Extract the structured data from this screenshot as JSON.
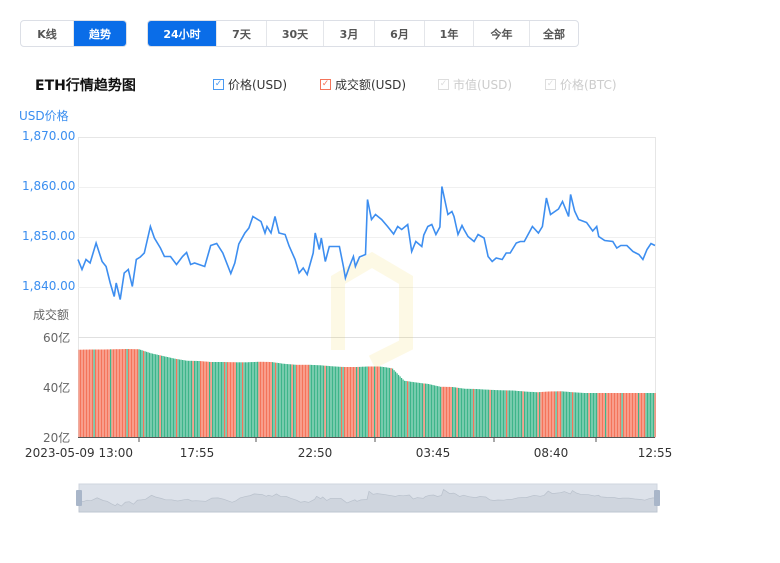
{
  "view_tabs": [
    {
      "label": "K线",
      "active": false
    },
    {
      "label": "趋势",
      "active": true
    }
  ],
  "range_tabs": [
    {
      "label": "24小时",
      "active": true
    },
    {
      "label": "7天"
    },
    {
      "label": "30天"
    },
    {
      "label": "3月"
    },
    {
      "label": "6月"
    },
    {
      "label": "1年"
    },
    {
      "label": "今年"
    },
    {
      "label": "全部"
    }
  ],
  "title": "ETH行情趋势图",
  "legend": [
    {
      "label": "价格(USD)",
      "checked": true,
      "color": "#4a9af2"
    },
    {
      "label": "成交额(USD)",
      "checked": true,
      "color": "#f4745a"
    },
    {
      "label": "市值(USD)",
      "checked": false,
      "color": "#cccccc"
    },
    {
      "label": "价格(BTC)",
      "checked": false,
      "color": "#cccccc"
    }
  ],
  "chart_data": [
    {
      "type": "line",
      "ylabel": "USD价格",
      "ylim": [
        1835,
        1870
      ],
      "yticks": [
        "1,870.00",
        "1,860.00",
        "1,850.00",
        "1,840.00"
      ],
      "color": "#3d8ef0",
      "x_range": [
        "2023-05-09 13:00",
        "2023-05-10 12:55"
      ],
      "points": [
        [
          "13:00",
          1845.5
        ],
        [
          "13:10",
          1843.5
        ],
        [
          "13:20",
          1845.5
        ],
        [
          "13:30",
          1844.8
        ],
        [
          "13:45",
          1848.8
        ],
        [
          "14:00",
          1845.1
        ],
        [
          "14:10",
          1844.1
        ],
        [
          "14:20",
          1840.8
        ],
        [
          "14:30",
          1838.1
        ],
        [
          "14:35",
          1840.8
        ],
        [
          "14:45",
          1837.5
        ],
        [
          "14:55",
          1842.8
        ],
        [
          "15:05",
          1843.5
        ],
        [
          "15:15",
          1840.1
        ],
        [
          "15:25",
          1845.5
        ],
        [
          "15:35",
          1846.0
        ],
        [
          "15:45",
          1846.8
        ],
        [
          "16:00",
          1852.1
        ],
        [
          "16:10",
          1849.8
        ],
        [
          "16:25",
          1847.8
        ],
        [
          "16:35",
          1846.1
        ],
        [
          "16:50",
          1846.1
        ],
        [
          "17:05",
          1844.5
        ],
        [
          "17:20",
          1846.1
        ],
        [
          "17:30",
          1846.9
        ],
        [
          "17:40",
          1844.5
        ],
        [
          "17:50",
          1844.8
        ],
        [
          "18:15",
          1844.1
        ],
        [
          "18:30",
          1848.3
        ],
        [
          "18:45",
          1848.7
        ],
        [
          "19:00",
          1846.8
        ],
        [
          "19:20",
          1842.7
        ],
        [
          "19:30",
          1844.8
        ],
        [
          "19:40",
          1848.6
        ],
        [
          "19:55",
          1850.8
        ],
        [
          "20:05",
          1851.8
        ],
        [
          "20:15",
          1854.1
        ],
        [
          "20:35",
          1853.1
        ],
        [
          "20:45",
          1850.8
        ],
        [
          "20:50",
          1852.1
        ],
        [
          "21:00",
          1850.8
        ],
        [
          "21:10",
          1854.1
        ],
        [
          "21:20",
          1850.8
        ],
        [
          "21:35",
          1850.5
        ],
        [
          "21:45",
          1848.2
        ],
        [
          "22:00",
          1845.5
        ],
        [
          "22:10",
          1842.8
        ],
        [
          "22:20",
          1843.8
        ],
        [
          "22:30",
          1842.5
        ],
        [
          "22:45",
          1846.8
        ],
        [
          "22:50",
          1850.8
        ],
        [
          "23:00",
          1847.5
        ],
        [
          "23:05",
          1849.8
        ],
        [
          "23:15",
          1845.1
        ],
        [
          "23:25",
          1848.1
        ],
        [
          "23:35",
          1848.1
        ],
        [
          "23:50",
          1848.1
        ],
        [
          "00:00",
          1844.1
        ],
        [
          "00:05",
          1841.8
        ],
        [
          "00:15",
          1844.1
        ],
        [
          "00:25",
          1846.1
        ],
        [
          "00:30",
          1844.1
        ],
        [
          "00:40",
          1846.0
        ],
        [
          "00:55",
          1846.5
        ],
        [
          "01:00",
          1857.5
        ],
        [
          "01:10",
          1853.5
        ],
        [
          "01:20",
          1854.5
        ],
        [
          "01:35",
          1853.5
        ],
        [
          "01:50",
          1852.1
        ],
        [
          "02:05",
          1850.6
        ],
        [
          "02:15",
          1852.1
        ],
        [
          "02:25",
          1851.5
        ],
        [
          "02:40",
          1852.5
        ],
        [
          "02:50",
          1847.1
        ],
        [
          "03:00",
          1849.1
        ],
        [
          "03:15",
          1848.1
        ],
        [
          "03:20",
          1850.4
        ],
        [
          "03:30",
          1852.1
        ],
        [
          "03:40",
          1852.5
        ],
        [
          "03:50",
          1850.5
        ],
        [
          "04:00",
          1852.0
        ],
        [
          "04:05",
          1860.1
        ],
        [
          "04:20",
          1854.5
        ],
        [
          "04:30",
          1855.1
        ],
        [
          "04:35",
          1854.1
        ],
        [
          "04:45",
          1850.5
        ],
        [
          "04:55",
          1852.3
        ],
        [
          "05:00",
          1851.5
        ],
        [
          "05:10",
          1850.1
        ],
        [
          "05:25",
          1849.1
        ],
        [
          "05:35",
          1850.5
        ],
        [
          "05:50",
          1849.8
        ],
        [
          "06:00",
          1846.1
        ],
        [
          "06:10",
          1845.1
        ],
        [
          "06:20",
          1845.8
        ],
        [
          "06:35",
          1845.5
        ],
        [
          "06:45",
          1846.8
        ],
        [
          "06:55",
          1846.8
        ],
        [
          "07:10",
          1848.8
        ],
        [
          "07:20",
          1849.1
        ],
        [
          "07:30",
          1849.1
        ],
        [
          "07:50",
          1852.1
        ],
        [
          "08:05",
          1850.8
        ],
        [
          "08:15",
          1852.1
        ],
        [
          "08:25",
          1857.8
        ],
        [
          "08:35",
          1854.5
        ],
        [
          "08:55",
          1855.6
        ],
        [
          "09:05",
          1857.1
        ],
        [
          "09:20",
          1854.1
        ],
        [
          "09:25",
          1858.5
        ],
        [
          "09:35",
          1855.2
        ],
        [
          "09:45",
          1853.5
        ],
        [
          "10:05",
          1852.9
        ],
        [
          "10:20",
          1851.2
        ],
        [
          "10:30",
          1852.1
        ],
        [
          "10:35",
          1850.1
        ],
        [
          "10:50",
          1849.3
        ],
        [
          "11:10",
          1849.1
        ],
        [
          "11:20",
          1847.8
        ],
        [
          "11:30",
          1848.3
        ],
        [
          "11:45",
          1848.3
        ],
        [
          "12:00",
          1847.1
        ],
        [
          "12:15",
          1846.5
        ],
        [
          "12:25",
          1845.5
        ],
        [
          "12:35",
          1847.5
        ],
        [
          "12:45",
          1848.7
        ],
        [
          "12:55",
          1848.3
        ]
      ]
    },
    {
      "type": "bar",
      "ylabel": "成交额",
      "ylim": [
        20,
        60
      ],
      "yticks": [
        "60亿",
        "40亿",
        "20亿"
      ],
      "unit": "亿",
      "up_color": "#f4745a",
      "down_color": "#3db58a",
      "xticks": [
        "2023-05-09 13:00",
        "17:55",
        "22:50",
        "03:45",
        "08:40",
        "12:55"
      ],
      "points": [
        [
          "13:00",
          54.9,
          "up"
        ],
        [
          "13:30",
          55.0,
          "up"
        ],
        [
          "14:00",
          55.0,
          "up"
        ],
        [
          "14:30",
          55.1,
          "up"
        ],
        [
          "15:00",
          55.2,
          "up"
        ],
        [
          "15:30",
          55.1,
          "down"
        ],
        [
          "16:00",
          53.5,
          "down"
        ],
        [
          "16:30",
          52.4,
          "down"
        ],
        [
          "17:00",
          51.3,
          "down"
        ],
        [
          "17:30",
          50.5,
          "down"
        ],
        [
          "18:00",
          50.4,
          "up"
        ],
        [
          "18:30",
          50.0,
          "down"
        ],
        [
          "19:00",
          50.0,
          "up"
        ],
        [
          "19:30",
          49.9,
          "down"
        ],
        [
          "20:00",
          49.9,
          "down"
        ],
        [
          "20:30",
          50.1,
          "up"
        ],
        [
          "21:00",
          50.0,
          "down"
        ],
        [
          "21:30",
          49.3,
          "down"
        ],
        [
          "22:00",
          48.9,
          "up"
        ],
        [
          "22:30",
          48.9,
          "down"
        ],
        [
          "23:00",
          48.7,
          "down"
        ],
        [
          "23:30",
          48.3,
          "down"
        ],
        [
          "00:00",
          48.0,
          "up"
        ],
        [
          "00:30",
          48.0,
          "down"
        ],
        [
          "01:00",
          48.2,
          "up"
        ],
        [
          "01:30",
          48.2,
          "down"
        ],
        [
          "02:00",
          47.5,
          "down"
        ],
        [
          "02:30",
          42.5,
          "down"
        ],
        [
          "03:00",
          41.8,
          "down"
        ],
        [
          "03:30",
          41.2,
          "down"
        ],
        [
          "04:00",
          40.1,
          "up"
        ],
        [
          "04:30",
          40.0,
          "down"
        ],
        [
          "05:00",
          39.3,
          "down"
        ],
        [
          "05:30",
          39.2,
          "down"
        ],
        [
          "06:00",
          38.9,
          "down"
        ],
        [
          "06:30",
          38.7,
          "down"
        ],
        [
          "07:00",
          38.6,
          "down"
        ],
        [
          "07:30",
          38.2,
          "down"
        ],
        [
          "08:00",
          37.9,
          "up"
        ],
        [
          "08:30",
          38.2,
          "up"
        ],
        [
          "09:00",
          38.3,
          "down"
        ],
        [
          "09:30",
          37.9,
          "down"
        ],
        [
          "10:00",
          37.6,
          "down"
        ],
        [
          "10:30",
          37.6,
          "up"
        ],
        [
          "11:00",
          37.6,
          "up"
        ],
        [
          "11:30",
          37.6,
          "up"
        ],
        [
          "12:00",
          37.6,
          "up"
        ],
        [
          "12:30",
          37.6,
          "down"
        ]
      ]
    }
  ]
}
